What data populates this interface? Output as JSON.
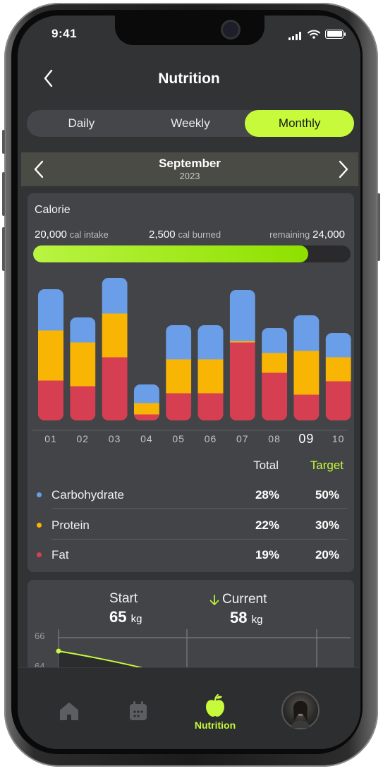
{
  "status_bar": {
    "time": "9:41"
  },
  "header": {
    "title": "Nutrition"
  },
  "period_tabs": [
    {
      "label": "Daily",
      "active": false
    },
    {
      "label": "Weekly",
      "active": false
    },
    {
      "label": "Monthly",
      "active": true
    }
  ],
  "period": {
    "month": "September",
    "year": "2023"
  },
  "calorie": {
    "title": "Calorie",
    "intake_value": "20,000",
    "intake_unit": "cal intake",
    "burned_value": "2,500",
    "burned_unit": "cal burned",
    "remaining_label": "remaining",
    "remaining_value": "24,000",
    "progress_fraction": 0.867
  },
  "chart_data": {
    "type": "bar",
    "stacked": true,
    "categories": [
      "01",
      "02",
      "03",
      "04",
      "05",
      "06",
      "07",
      "08",
      "09",
      "10"
    ],
    "current_category": "09",
    "series": [
      {
        "name": "Fat",
        "color": "#d63e52",
        "values": [
          57,
          49,
          90,
          9,
          39,
          39,
          111,
          68,
          37,
          56
        ]
      },
      {
        "name": "Protein",
        "color": "#f9b503",
        "values": [
          71,
          62,
          62,
          16,
          48,
          48,
          2,
          28,
          62,
          34
        ]
      },
      {
        "name": "Carbohydrate",
        "color": "#6b9ee8",
        "values": [
          58,
          35,
          50,
          26,
          48,
          48,
          72,
          35,
          50,
          34
        ]
      }
    ],
    "ylim": [
      0,
      205
    ]
  },
  "macros": {
    "total_header": "Total",
    "target_header": "Target",
    "rows": [
      {
        "name": "Carbohydrate",
        "color": "#6b9ee8",
        "total": "28%",
        "target": "50%"
      },
      {
        "name": "Protein",
        "color": "#f9b503",
        "total": "22%",
        "target": "30%"
      },
      {
        "name": "Fat",
        "color": "#d63e52",
        "total": "19%",
        "target": "20%"
      }
    ]
  },
  "weight": {
    "start_label": "Start",
    "start_value": "65",
    "current_label": "Current",
    "current_value": "58",
    "unit": "kg",
    "axis_ticks": [
      "66",
      "64"
    ]
  },
  "tabbar": {
    "items": [
      {
        "icon": "home-icon",
        "active": false
      },
      {
        "icon": "calendar-icon",
        "active": false
      },
      {
        "icon": "apple-icon",
        "label": "Nutrition",
        "active": true
      },
      {
        "icon": "avatar",
        "active": false
      }
    ]
  },
  "colors": {
    "accent": "#c6fa3a",
    "background": "#323335",
    "card": "#434447"
  }
}
